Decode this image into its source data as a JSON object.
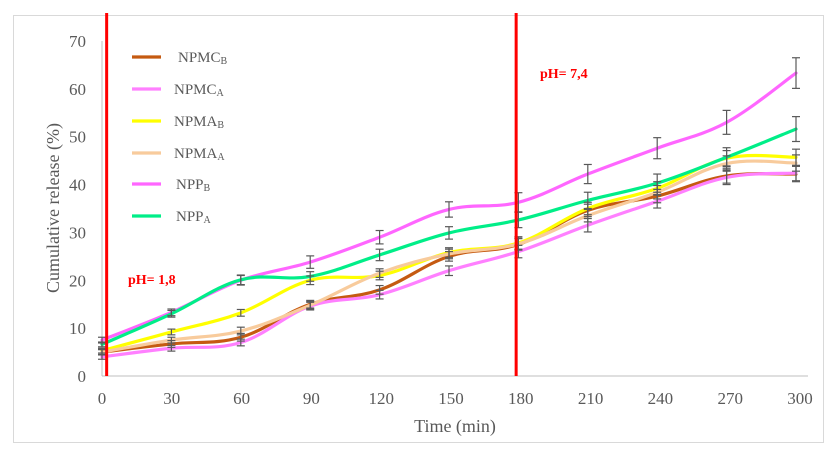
{
  "chart_data": {
    "type": "line",
    "title": "",
    "xlabel": "Time (min)",
    "ylabel": "Cumulative release (%)",
    "x": [
      0,
      30,
      60,
      90,
      120,
      150,
      180,
      210,
      240,
      270,
      300
    ],
    "x_ticks": [
      "0",
      "30",
      "60",
      "90",
      "120",
      "150",
      "180",
      "210",
      "240",
      "270",
      "300"
    ],
    "y_ticks": [
      "0",
      "10",
      "20",
      "30",
      "40",
      "50",
      "60",
      "70"
    ],
    "xlim": [
      0,
      300
    ],
    "ylim": [
      0,
      70
    ],
    "grid": false,
    "legend_position": "top-left",
    "series": [
      {
        "name": "NPMC",
        "subscript": "B",
        "color": "#c55a11",
        "values": [
          5.0,
          6.7,
          8.1,
          15.0,
          18.0,
          25.0,
          27.5,
          34.6,
          37.6,
          41.8,
          42.2
        ],
        "errors": [
          0.6,
          0.7,
          0.8,
          0.8,
          0.9,
          1.0,
          1.2,
          1.3,
          1.4,
          1.5,
          1.6
        ]
      },
      {
        "name": "NPMC",
        "subscript": "A",
        "color": "#ff80ff",
        "values": [
          4.0,
          5.8,
          7.0,
          14.6,
          17.0,
          22.0,
          26.0,
          31.5,
          36.5,
          41.5,
          42.4
        ],
        "errors": [
          0.5,
          0.6,
          0.7,
          0.8,
          0.9,
          1.0,
          1.3,
          1.4,
          1.4,
          1.5,
          1.6
        ]
      },
      {
        "name": "NPMA",
        "subscript": "B",
        "color": "#ffff00",
        "values": [
          5.3,
          9.2,
          13.2,
          20.0,
          21.0,
          25.8,
          27.8,
          35.0,
          39.2,
          45.5,
          45.7
        ],
        "errors": [
          0.5,
          0.6,
          0.7,
          0.9,
          0.9,
          1.0,
          1.3,
          1.3,
          1.4,
          1.6,
          1.7
        ]
      },
      {
        "name": "NPMA",
        "subscript": "A",
        "color": "#f8cb9c",
        "values": [
          5.0,
          7.5,
          9.4,
          14.8,
          21.5,
          25.5,
          27.6,
          33.5,
          38.4,
          44.4,
          44.5
        ],
        "errors": [
          0.5,
          0.6,
          0.8,
          0.8,
          0.9,
          1.0,
          1.2,
          1.3,
          1.4,
          1.6,
          1.7
        ]
      },
      {
        "name": "NPP",
        "subscript": "B",
        "color": "#ff66ff",
        "values": [
          7.5,
          13.3,
          20.0,
          23.8,
          29.0,
          34.8,
          36.3,
          42.2,
          47.6,
          53.0,
          63.3
        ],
        "errors": [
          0.6,
          0.7,
          1.0,
          1.3,
          1.4,
          1.6,
          2.0,
          2.0,
          2.2,
          2.5,
          3.2
        ]
      },
      {
        "name": "NPP",
        "subscript": "A",
        "color": "#00ee88",
        "values": [
          6.6,
          13.0,
          20.1,
          20.8,
          25.3,
          29.9,
          32.6,
          36.7,
          40.3,
          45.7,
          51.6
        ],
        "errors": [
          0.5,
          0.7,
          1.0,
          1.0,
          1.2,
          1.3,
          1.6,
          1.7,
          1.9,
          2.0,
          2.6
        ]
      }
    ],
    "annotations": [
      {
        "text": "pH= 1,8",
        "x": 0
      },
      {
        "text": "pH= 7,4",
        "x": 180
      }
    ],
    "vertical_lines": [
      {
        "x": 2,
        "color": "#ff0000"
      },
      {
        "x": 178,
        "color": "#ff0000"
      }
    ]
  }
}
